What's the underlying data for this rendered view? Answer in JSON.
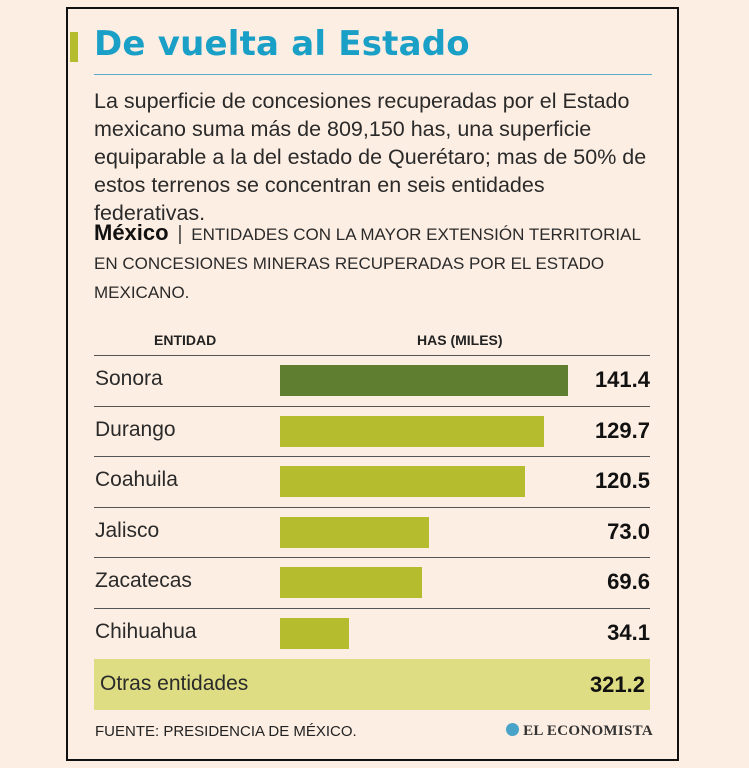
{
  "title": "De vuelta al Estado",
  "intro": "La superficie de concesiones recuperadas por el Estado mexicano suma más de 809,150 has, una superficie equiparable a la del estado de Querétaro; mas de 50% de estos terrenos se concentran en seis entidades federativas.",
  "subtitle": {
    "country": "México",
    "separator": "|",
    "text": "ENTIDADES CON LA MAYOR EXTENSIÓN TERRITORIAL EN CONCESIONES MINERAS RECUPERADAS POR EL ESTADO MEXICANO."
  },
  "colors": {
    "title": "#1a9fc6",
    "bar_highlight": "#5f7e2f",
    "bar": "#b5bd2f",
    "others_band": "#dedd84"
  },
  "chart_data": {
    "type": "bar",
    "orientation": "horizontal",
    "column_headers": {
      "entity": "ENTIDAD",
      "value": "HAS (MILES)"
    },
    "categories": [
      "Sonora",
      "Durango",
      "Coahuila",
      "Jalisco",
      "Zacatecas",
      "Chihuahua"
    ],
    "values": [
      141.4,
      129.7,
      120.5,
      73.0,
      69.6,
      34.1
    ],
    "value_labels": [
      "141.4",
      "129.7",
      "120.5",
      "73.0",
      "69.6",
      "34.1"
    ],
    "highlighted_index": 0,
    "xlim": [
      0,
      141.4
    ],
    "unit": "miles de hectáreas",
    "others": {
      "label": "Otras entidades",
      "value": 321.2,
      "value_label": "321.2"
    }
  },
  "footer": {
    "source": "FUENTE: PRESIDENCIA DE MÉXICO.",
    "brand": "EL ECONOMISTA"
  }
}
